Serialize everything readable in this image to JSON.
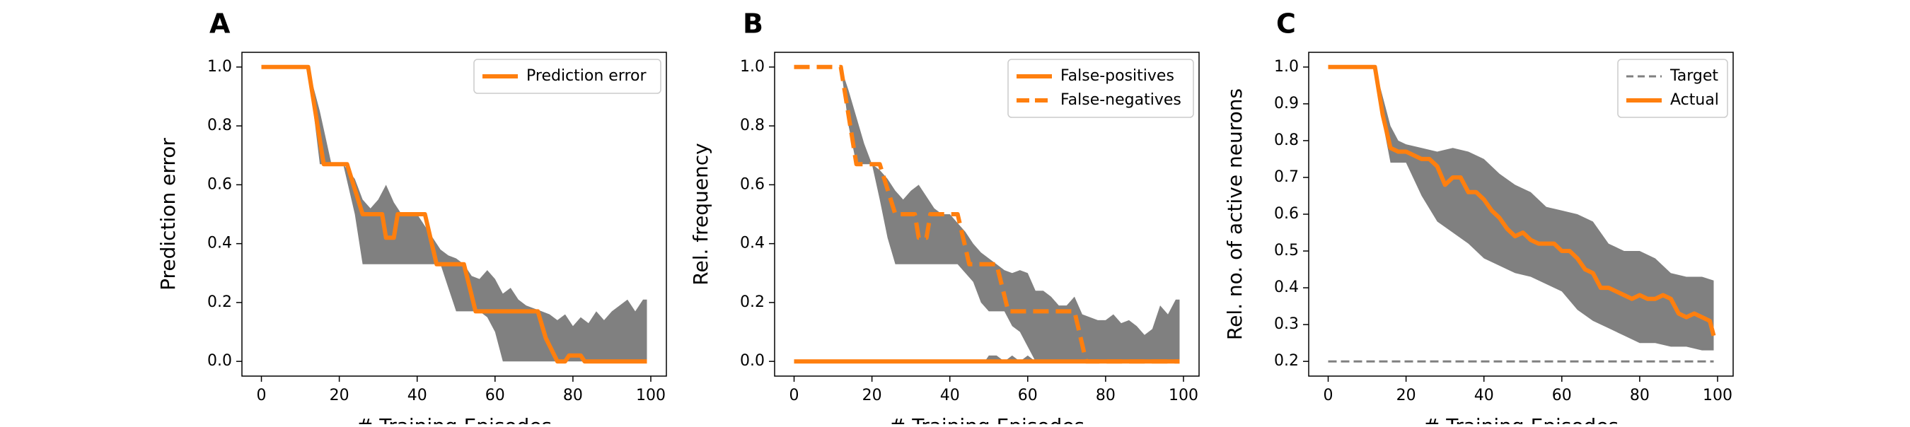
{
  "chart_data": [
    {
      "panel_label": "A",
      "type": "line",
      "xlabel": "# Training Episodes",
      "ylabel": "Prediction error",
      "xlim": [
        -5,
        104
      ],
      "ylim": [
        -0.05,
        1.05
      ],
      "xticks": [
        0,
        20,
        40,
        60,
        80,
        100
      ],
      "yticks": [
        0.0,
        0.2,
        0.4,
        0.6,
        0.8,
        1.0
      ],
      "xtick_labels": [
        "0",
        "20",
        "40",
        "60",
        "80",
        "100"
      ],
      "ytick_labels": [
        "0.0",
        "0.2",
        "0.4",
        "0.6",
        "0.8",
        "1.0"
      ],
      "legend": {
        "position": "top-right",
        "entries": [
          {
            "label": "Prediction error",
            "color": "#ff7f0e",
            "style": "solid"
          }
        ]
      },
      "band": {
        "color": "#808080",
        "x": [
          0,
          12,
          15,
          18,
          21,
          24,
          26,
          28,
          30,
          32,
          34,
          36,
          38,
          40,
          42,
          44,
          46,
          48,
          50,
          52,
          54,
          56,
          58,
          60,
          62,
          64,
          66,
          68,
          70,
          72,
          74,
          76,
          78,
          80,
          82,
          84,
          86,
          88,
          90,
          92,
          94,
          96,
          98,
          99
        ],
        "upper": [
          1.0,
          1.0,
          0.85,
          0.67,
          0.67,
          0.62,
          0.55,
          0.52,
          0.55,
          0.6,
          0.54,
          0.5,
          0.5,
          0.5,
          0.46,
          0.42,
          0.38,
          0.36,
          0.35,
          0.33,
          0.29,
          0.28,
          0.31,
          0.28,
          0.23,
          0.25,
          0.21,
          0.19,
          0.18,
          0.17,
          0.16,
          0.14,
          0.16,
          0.12,
          0.15,
          0.13,
          0.17,
          0.14,
          0.17,
          0.19,
          0.21,
          0.17,
          0.21,
          0.21
        ],
        "lower": [
          1.0,
          1.0,
          0.67,
          0.67,
          0.67,
          0.5,
          0.33,
          0.33,
          0.33,
          0.33,
          0.33,
          0.33,
          0.33,
          0.33,
          0.33,
          0.33,
          0.33,
          0.25,
          0.17,
          0.17,
          0.17,
          0.17,
          0.15,
          0.1,
          0.0,
          0.0,
          0.0,
          0.0,
          0.0,
          0.0,
          0.0,
          0.0,
          0.0,
          0.0,
          0.0,
          0.0,
          0.0,
          0.0,
          0.0,
          0.0,
          0.0,
          0.0,
          0.0,
          0.0
        ]
      },
      "series": [
        {
          "name": "Prediction error",
          "color": "#ff7f0e",
          "style": "solid",
          "x": [
            0,
            12,
            16,
            22,
            26,
            31,
            32,
            34,
            35,
            42,
            45,
            52,
            55,
            71,
            73,
            76,
            78,
            79,
            82,
            83,
            99
          ],
          "y": [
            1.0,
            1.0,
            0.67,
            0.67,
            0.5,
            0.5,
            0.42,
            0.42,
            0.5,
            0.5,
            0.33,
            0.33,
            0.17,
            0.17,
            0.08,
            0.0,
            0.0,
            0.02,
            0.02,
            0.0,
            0.0
          ]
        }
      ]
    },
    {
      "panel_label": "B",
      "type": "line",
      "xlabel": "# Training Episodes",
      "ylabel": "Rel. frequency",
      "xlim": [
        -5,
        104
      ],
      "ylim": [
        -0.05,
        1.05
      ],
      "xticks": [
        0,
        20,
        40,
        60,
        80,
        100
      ],
      "yticks": [
        0.0,
        0.2,
        0.4,
        0.6,
        0.8,
        1.0
      ],
      "xtick_labels": [
        "0",
        "20",
        "40",
        "60",
        "80",
        "100"
      ],
      "ytick_labels": [
        "0.0",
        "0.2",
        "0.4",
        "0.6",
        "0.8",
        "1.0"
      ],
      "legend": {
        "position": "top-right",
        "entries": [
          {
            "label": "False-positives",
            "color": "#ff7f0e",
            "style": "solid"
          },
          {
            "label": "False-negatives",
            "color": "#ff7f0e",
            "style": "dashed"
          }
        ]
      },
      "band": {
        "color": "#808080",
        "x": [
          0,
          12,
          14,
          16,
          18,
          20,
          22,
          24,
          26,
          28,
          30,
          32,
          34,
          36,
          38,
          40,
          42,
          44,
          46,
          48,
          50,
          52,
          54,
          56,
          58,
          60,
          62,
          64,
          66,
          68,
          70,
          72,
          74,
          76,
          78,
          80,
          82,
          84,
          86,
          88,
          90,
          92,
          94,
          96,
          98,
          99
        ],
        "upper": [
          1.0,
          1.0,
          0.92,
          0.83,
          0.74,
          0.67,
          0.65,
          0.62,
          0.58,
          0.55,
          0.58,
          0.6,
          0.56,
          0.52,
          0.5,
          0.5,
          0.47,
          0.44,
          0.4,
          0.37,
          0.35,
          0.33,
          0.31,
          0.3,
          0.31,
          0.3,
          0.24,
          0.24,
          0.22,
          0.19,
          0.19,
          0.22,
          0.16,
          0.15,
          0.14,
          0.14,
          0.16,
          0.13,
          0.14,
          0.12,
          0.09,
          0.11,
          0.19,
          0.16,
          0.21,
          0.21
        ],
        "lower": [
          1.0,
          1.0,
          0.8,
          0.67,
          0.67,
          0.67,
          0.55,
          0.42,
          0.33,
          0.33,
          0.33,
          0.33,
          0.33,
          0.33,
          0.33,
          0.33,
          0.33,
          0.3,
          0.27,
          0.2,
          0.17,
          0.17,
          0.17,
          0.12,
          0.1,
          0.05,
          0.0,
          0.0,
          0.0,
          0.0,
          0.0,
          0.0,
          0.0,
          0.0,
          0.0,
          0.0,
          0.0,
          0.0,
          0.0,
          0.0,
          0.0,
          0.0,
          0.0,
          0.0,
          0.0,
          0.0
        ]
      },
      "band2": {
        "color": "#808080",
        "x": [
          49,
          50,
          52,
          54,
          56,
          58,
          60,
          62,
          64,
          66,
          68,
          70,
          72
        ],
        "upper": [
          0.0,
          0.02,
          0.02,
          0.0,
          0.02,
          0.0,
          0.02,
          0.0,
          0.0,
          0.0,
          0.0,
          0.0,
          0.0
        ],
        "lower": [
          0.0,
          0.0,
          0.0,
          0.0,
          0.0,
          0.0,
          0.0,
          0.0,
          0.0,
          0.0,
          0.0,
          0.0,
          0.0
        ]
      },
      "series": [
        {
          "name": "False-positives",
          "color": "#ff7f0e",
          "style": "solid",
          "x": [
            0,
            99
          ],
          "y": [
            0.0,
            0.0
          ]
        },
        {
          "name": "False-negatives",
          "color": "#ff7f0e",
          "style": "dashed",
          "x": [
            0,
            12,
            16,
            22,
            26,
            31,
            32,
            34,
            35,
            42,
            45,
            52,
            55,
            72,
            75,
            76,
            99
          ],
          "y": [
            1.0,
            1.0,
            0.67,
            0.67,
            0.5,
            0.5,
            0.42,
            0.42,
            0.5,
            0.5,
            0.33,
            0.33,
            0.17,
            0.17,
            0.0,
            0.0,
            0.0
          ]
        }
      ]
    },
    {
      "panel_label": "C",
      "type": "line",
      "xlabel": "# Training Episodes",
      "ylabel": "Rel. no. of active neurons",
      "xlim": [
        -5,
        104
      ],
      "ylim": [
        0.16,
        1.04
      ],
      "xticks": [
        0,
        20,
        40,
        60,
        80,
        100
      ],
      "yticks": [
        0.2,
        0.3,
        0.4,
        0.5,
        0.6,
        0.7,
        0.8,
        0.9,
        1.0
      ],
      "xtick_labels": [
        "0",
        "20",
        "40",
        "60",
        "80",
        "100"
      ],
      "ytick_labels": [
        "0.2",
        "0.3",
        "0.4",
        "0.5",
        "0.6",
        "0.7",
        "0.8",
        "0.9",
        "1.0"
      ],
      "legend": {
        "position": "top-right",
        "entries": [
          {
            "label": "Target",
            "color": "#808080",
            "style": "dashed"
          },
          {
            "label": "Actual",
            "color": "#ff7f0e",
            "style": "solid"
          }
        ]
      },
      "band": {
        "color": "#808080",
        "x": [
          0,
          12,
          14,
          16,
          18,
          20,
          24,
          28,
          32,
          36,
          40,
          44,
          48,
          52,
          56,
          60,
          64,
          68,
          72,
          76,
          80,
          84,
          88,
          92,
          96,
          99
        ],
        "upper": [
          1.0,
          1.0,
          0.92,
          0.84,
          0.8,
          0.79,
          0.78,
          0.77,
          0.78,
          0.77,
          0.75,
          0.71,
          0.68,
          0.66,
          0.62,
          0.61,
          0.6,
          0.58,
          0.52,
          0.5,
          0.5,
          0.48,
          0.44,
          0.43,
          0.43,
          0.42
        ],
        "lower": [
          1.0,
          1.0,
          0.85,
          0.74,
          0.74,
          0.74,
          0.65,
          0.58,
          0.55,
          0.52,
          0.48,
          0.46,
          0.44,
          0.43,
          0.41,
          0.39,
          0.34,
          0.31,
          0.29,
          0.27,
          0.25,
          0.25,
          0.24,
          0.24,
          0.23,
          0.23
        ]
      },
      "series": [
        {
          "name": "Target",
          "color": "#808080",
          "style": "dashed",
          "x": [
            0,
            99
          ],
          "y": [
            0.2,
            0.2
          ]
        },
        {
          "name": "Actual",
          "color": "#ff7f0e",
          "style": "solid",
          "x": [
            0,
            12,
            14,
            16,
            18,
            20,
            22,
            24,
            26,
            28,
            30,
            32,
            34,
            36,
            38,
            40,
            42,
            44,
            46,
            48,
            50,
            52,
            54,
            56,
            58,
            60,
            62,
            64,
            66,
            68,
            70,
            72,
            74,
            76,
            78,
            80,
            82,
            84,
            86,
            88,
            90,
            92,
            94,
            96,
            98,
            99
          ],
          "y": [
            1.0,
            1.0,
            0.87,
            0.78,
            0.77,
            0.77,
            0.76,
            0.75,
            0.75,
            0.73,
            0.68,
            0.7,
            0.7,
            0.66,
            0.66,
            0.64,
            0.61,
            0.59,
            0.56,
            0.54,
            0.55,
            0.53,
            0.52,
            0.52,
            0.52,
            0.5,
            0.5,
            0.48,
            0.45,
            0.44,
            0.4,
            0.4,
            0.39,
            0.38,
            0.37,
            0.38,
            0.37,
            0.37,
            0.38,
            0.37,
            0.33,
            0.32,
            0.33,
            0.32,
            0.31,
            0.27
          ]
        }
      ]
    }
  ]
}
